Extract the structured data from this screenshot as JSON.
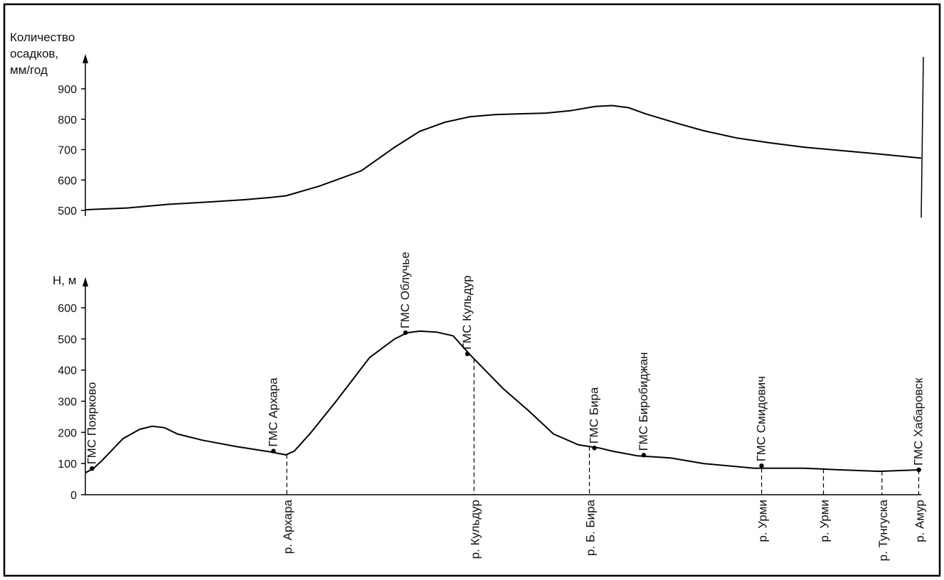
{
  "chart_data": [
    {
      "type": "line",
      "ylabel_lines": [
        "Количество",
        "осадков,",
        "мм/год"
      ],
      "yticks": [
        500,
        600,
        700,
        800,
        900
      ],
      "ylim": [
        500,
        900
      ],
      "x_domain": [
        0,
        100
      ],
      "grid": false,
      "series": [
        {
          "x": [
            0,
            5,
            10,
            15,
            19,
            22,
            24,
            28,
            33,
            37,
            40,
            43,
            46,
            49,
            52,
            55,
            58,
            61,
            63,
            65,
            67,
            71,
            74,
            78,
            82,
            86,
            90,
            94,
            100
          ],
          "values": [
            502,
            508,
            520,
            528,
            535,
            542,
            548,
            580,
            630,
            708,
            760,
            790,
            808,
            815,
            818,
            820,
            828,
            842,
            845,
            838,
            818,
            785,
            762,
            738,
            722,
            708,
            698,
            688,
            672
          ]
        }
      ]
    },
    {
      "type": "line",
      "ylabel": "Н, м",
      "yticks": [
        0,
        100,
        200,
        300,
        400,
        500,
        600
      ],
      "ylim": [
        0,
        600
      ],
      "x_domain": [
        0,
        100
      ],
      "grid": false,
      "series": [
        {
          "x": [
            0,
            1,
            2,
            4.5,
            6.5,
            8,
            9.5,
            11,
            14,
            18,
            22,
            24,
            25,
            27,
            30,
            34,
            37,
            38.5,
            40,
            42,
            44,
            46,
            48,
            50,
            53,
            56,
            59,
            61.5,
            63,
            66,
            70,
            74,
            80,
            86,
            90,
            95,
            100
          ],
          "values": [
            70,
            85,
            110,
            180,
            210,
            220,
            215,
            195,
            175,
            155,
            138,
            128,
            140,
            200,
            300,
            440,
            500,
            520,
            525,
            522,
            510,
            450,
            395,
            340,
            270,
            195,
            160,
            150,
            140,
            125,
            118,
            100,
            85,
            85,
            80,
            75,
            80
          ]
        }
      ],
      "stations": [
        {
          "label": "ГМС Поярково",
          "x": 0.8,
          "h": 84
        },
        {
          "label": "ГМС Архара",
          "x": 22.5,
          "h": 140
        },
        {
          "label": "ГМС Облучье",
          "x": 38.3,
          "h": 520
        },
        {
          "label": "ГМС Кульдур",
          "x": 45.7,
          "h": 452
        },
        {
          "label": "ГМС Бира",
          "x": 60.9,
          "h": 150
        },
        {
          "label": "ГМС Биробиджан",
          "x": 66.8,
          "h": 127
        },
        {
          "label": "ГМС Смидович",
          "x": 80.9,
          "h": 93
        },
        {
          "label": "ГМС Хабаровск",
          "x": 99.7,
          "h": 80
        }
      ],
      "rivers": [
        {
          "label": "р. Архара",
          "x": 24.1
        },
        {
          "label": "р. Кульдур",
          "x": 46.5
        },
        {
          "label": "р. Б. Бира",
          "x": 60.3
        },
        {
          "label": "р. Урми",
          "x": 80.9
        },
        {
          "label": "р. Урми",
          "x": 88.3
        },
        {
          "label": "р. Тунгуска",
          "x": 95.3
        },
        {
          "label": "р. Амур",
          "x": 99.7
        }
      ]
    }
  ]
}
